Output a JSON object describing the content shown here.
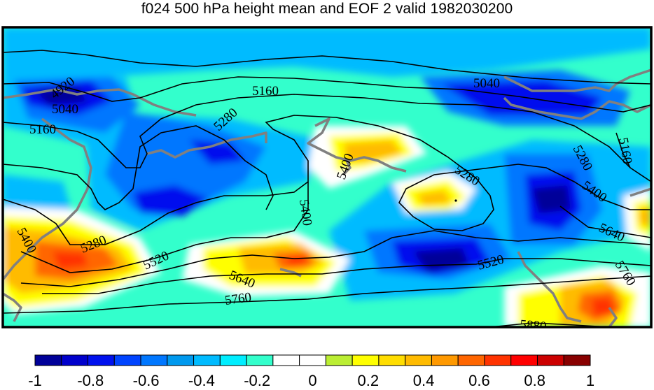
{
  "title": "f024 500 hPa height mean and EOF 2 valid 1982030200",
  "colorbar": {
    "ticks": [
      "-1",
      "-0.8",
      "-0.6",
      "-0.4",
      "-0.2",
      "0",
      "0.2",
      "0.4",
      "0.6",
      "0.8",
      "1"
    ],
    "colors": [
      "#000099",
      "#0000cc",
      "#0011ee",
      "#0044ff",
      "#0077ff",
      "#0099ee",
      "#00bbff",
      "#00eeff",
      "#33ffcc",
      "#ffffff",
      "#ffffff",
      "#bbee33",
      "#ffff00",
      "#ffdd00",
      "#ffbb00",
      "#ff9900",
      "#ff6600",
      "#ff3300",
      "#ff0000",
      "#cc0000",
      "#880000"
    ]
  },
  "contour_labels": [
    "4920",
    "5040",
    "5160",
    "5160",
    "5280",
    "5400",
    "5040",
    "5160",
    "5280",
    "5400",
    "5280",
    "5400",
    "5640",
    "5520",
    "5760",
    "5400",
    "5280",
    "5520",
    "5640",
    "5760",
    "5880"
  ]
}
